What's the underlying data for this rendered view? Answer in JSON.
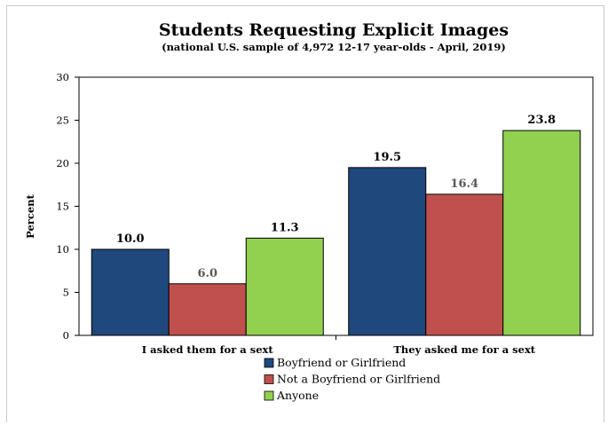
{
  "chart_data": {
    "type": "bar",
    "title": "Students Requesting Explicit Images",
    "subtitle": "(national U.S. sample of 4,972 12-17 year-olds - April, 2019)",
    "xlabel": "",
    "ylabel": "Percent",
    "ylim": [
      0,
      30
    ],
    "yticks": [
      0,
      5,
      10,
      15,
      20,
      25,
      30
    ],
    "categories": [
      "I asked them for a sext",
      "They asked me for a sext"
    ],
    "series": [
      {
        "name": "Boyfriend or Girlfriend",
        "values": [
          10.0,
          19.5
        ],
        "color": "#1f497d",
        "label_color": "#000000"
      },
      {
        "name": "Not a Boyfriend or Girlfriend",
        "values": [
          6.0,
          16.4
        ],
        "color": "#c0504d",
        "label_color": "#595959"
      },
      {
        "name": "Anyone",
        "values": [
          11.3,
          23.8
        ],
        "color": "#92d050",
        "label_color": "#000000"
      }
    ],
    "grid": false,
    "legend_position": "bottom"
  }
}
